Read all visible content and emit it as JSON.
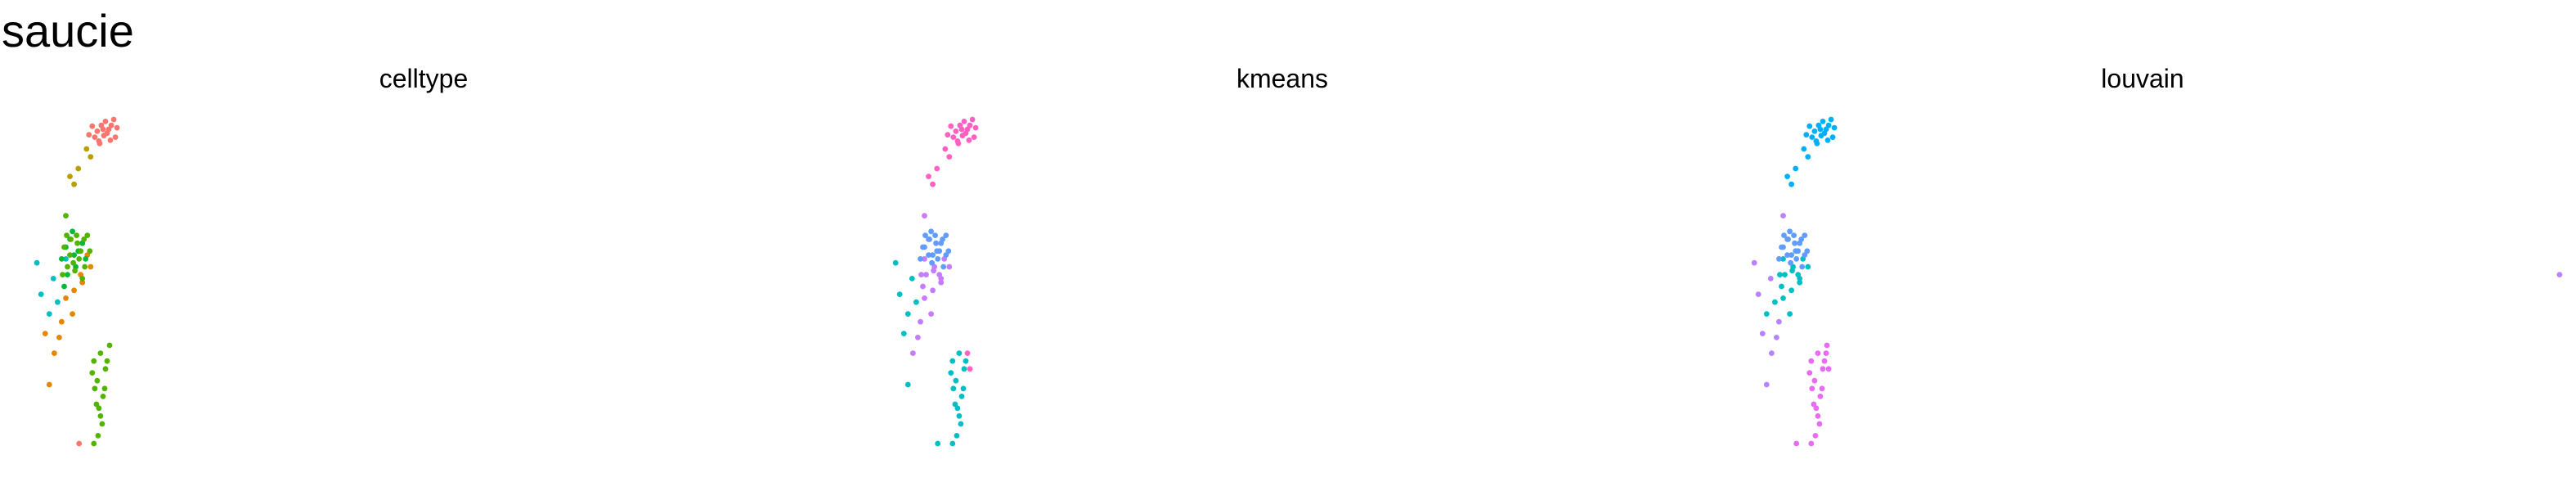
{
  "title": "saucie",
  "chart_data": [
    {
      "type": "scatter",
      "title": "celltype",
      "xlabel": "",
      "ylabel": "",
      "axes": "none",
      "grid": false,
      "legend": "none",
      "xlim": [
        0,
        100
      ],
      "ylim": [
        0,
        100
      ],
      "series": [
        {
          "name": "cluster-red",
          "color": "#F8766D",
          "points": [
            [
              8.5,
              88
            ],
            [
              9.5,
              90
            ],
            [
              10.5,
              91
            ],
            [
              9,
              87
            ],
            [
              10,
              89
            ],
            [
              11,
              88
            ],
            [
              9.8,
              92
            ],
            [
              8.8,
              89.5
            ],
            [
              10.4,
              87.2
            ],
            [
              9.3,
              91
            ],
            [
              11.2,
              90.4
            ],
            [
              7.8,
              88.6
            ],
            [
              10.8,
              92.5
            ],
            [
              9.1,
              86.4
            ],
            [
              8.2,
              90.8
            ],
            [
              10.2,
              90
            ],
            [
              9.6,
              88.4
            ],
            [
              6.6,
              10
            ]
          ]
        },
        {
          "name": "cluster-olive",
          "color": "#B79F00",
          "points": [
            [
              7.5,
              85
            ],
            [
              6.5,
              80
            ],
            [
              6,
              76
            ],
            [
              8,
              83
            ],
            [
              5.5,
              78
            ]
          ]
        },
        {
          "name": "cluster-teal",
          "color": "#00BFC4",
          "points": [
            [
              1.5,
              56
            ],
            [
              2,
              48
            ],
            [
              3.5,
              52
            ],
            [
              4,
              46
            ],
            [
              5,
              57
            ],
            [
              3,
              43
            ]
          ]
        },
        {
          "name": "cluster-orange",
          "color": "#E58700",
          "points": [
            [
              2.5,
              38
            ],
            [
              3,
              25
            ],
            [
              4.5,
              41
            ],
            [
              5,
              47
            ],
            [
              6,
              49
            ],
            [
              7,
              51
            ],
            [
              8,
              55
            ],
            [
              5.8,
              43
            ],
            [
              4.2,
              37
            ],
            [
              6.8,
              53
            ],
            [
              3.6,
              33
            ],
            [
              7.6,
              58
            ]
          ]
        },
        {
          "name": "cluster-green",
          "color": "#00BA38",
          "points": [
            [
              4.5,
              57
            ],
            [
              5,
              60
            ],
            [
              5.5,
              62
            ],
            [
              6,
              58
            ],
            [
              6.5,
              59
            ],
            [
              7,
              61
            ],
            [
              5.2,
              53
            ],
            [
              6.2,
              55
            ],
            [
              4.8,
              50
            ],
            [
              7.4,
              57
            ],
            [
              5.8,
              64
            ]
          ]
        },
        {
          "name": "cluster-darkgreen",
          "color": "#53B400",
          "points": [
            [
              5,
              68
            ],
            [
              4.8,
              60
            ],
            [
              5.6,
              62
            ],
            [
              6.4,
              61
            ],
            [
              6.6,
              57
            ],
            [
              7.2,
              62
            ],
            [
              5.2,
              55
            ],
            [
              5.9,
              56
            ],
            [
              7.3,
              55
            ],
            [
              7.9,
              59
            ],
            [
              6.1,
              54
            ],
            [
              7,
              52
            ],
            [
              5.5,
              58
            ],
            [
              6.8,
              59
            ],
            [
              7.6,
              63
            ],
            [
              4.6,
              53
            ],
            [
              6.3,
              63
            ],
            [
              5.1,
              63
            ],
            [
              8.4,
              31
            ],
            [
              8.2,
              28
            ],
            [
              9.2,
              33
            ],
            [
              10,
              31
            ],
            [
              8.5,
              24
            ],
            [
              9,
              19
            ],
            [
              9.5,
              22
            ],
            [
              8.8,
              26
            ],
            [
              9.8,
              29
            ],
            [
              9.4,
              15
            ],
            [
              8.9,
              12
            ],
            [
              8.4,
              10
            ],
            [
              10.3,
              35
            ],
            [
              9.7,
              24
            ],
            [
              9.2,
              17
            ],
            [
              8.7,
              20
            ]
          ]
        }
      ]
    },
    {
      "type": "scatter",
      "title": "kmeans",
      "xlabel": "",
      "ylabel": "",
      "axes": "none",
      "grid": false,
      "legend": "none",
      "xlim": [
        0,
        100
      ],
      "ylim": [
        0,
        100
      ],
      "series": [
        {
          "name": "cluster-pink",
          "color": "#FF61C3",
          "points": [
            [
              8.5,
              88
            ],
            [
              9.5,
              90
            ],
            [
              10.5,
              91
            ],
            [
              9,
              87
            ],
            [
              10,
              89
            ],
            [
              11,
              88
            ],
            [
              9.8,
              92
            ],
            [
              8.8,
              89.5
            ],
            [
              10.4,
              87.2
            ],
            [
              9.3,
              91
            ],
            [
              11.2,
              90.4
            ],
            [
              7.8,
              88.6
            ],
            [
              10.8,
              92.5
            ],
            [
              9.1,
              86.4
            ],
            [
              8.2,
              90.8
            ],
            [
              10.2,
              90
            ],
            [
              9.6,
              88.4
            ],
            [
              7.5,
              85
            ],
            [
              6.5,
              80
            ],
            [
              6,
              76
            ],
            [
              8,
              83
            ],
            [
              5.5,
              78
            ],
            [
              10.2,
              33
            ],
            [
              10.5,
              29
            ]
          ]
        },
        {
          "name": "cluster-cyan",
          "color": "#00BFC4",
          "points": [
            [
              1.5,
              56
            ],
            [
              2,
              48
            ],
            [
              3.5,
              52
            ],
            [
              4,
              46
            ],
            [
              3,
              43
            ],
            [
              2.5,
              38
            ],
            [
              8.4,
              31
            ],
            [
              8.2,
              28
            ],
            [
              9.2,
              33
            ],
            [
              10,
              31
            ],
            [
              8.5,
              24
            ],
            [
              9,
              19
            ],
            [
              9.5,
              22
            ],
            [
              8.8,
              26
            ],
            [
              9.8,
              29
            ],
            [
              9.4,
              15
            ],
            [
              8.9,
              12
            ],
            [
              8.4,
              10
            ],
            [
              9.7,
              24
            ],
            [
              9.2,
              17
            ],
            [
              8.7,
              20
            ],
            [
              6.6,
              10
            ],
            [
              3,
              25
            ]
          ]
        },
        {
          "name": "cluster-violet",
          "color": "#C77CFF",
          "points": [
            [
              4.5,
              41
            ],
            [
              5,
              47
            ],
            [
              6,
              49
            ],
            [
              7,
              51
            ],
            [
              5.8,
              43
            ],
            [
              4.2,
              37
            ],
            [
              3.6,
              33
            ],
            [
              5,
              57
            ],
            [
              8,
              55
            ],
            [
              6.8,
              53
            ],
            [
              4.8,
              50
            ],
            [
              5.2,
              53
            ],
            [
              6.2,
              55
            ],
            [
              7.4,
              57
            ],
            [
              6.1,
              54
            ],
            [
              7,
              52
            ],
            [
              4.6,
              53
            ],
            [
              5,
              68
            ]
          ]
        },
        {
          "name": "cluster-periwinkle",
          "color": "#619CFF",
          "points": [
            [
              4.5,
              57
            ],
            [
              5,
              60
            ],
            [
              5.5,
              62
            ],
            [
              6,
              58
            ],
            [
              6.5,
              59
            ],
            [
              7,
              61
            ],
            [
              5.8,
              64
            ],
            [
              4.8,
              60
            ],
            [
              5.6,
              62
            ],
            [
              6.4,
              61
            ],
            [
              6.6,
              57
            ],
            [
              7.2,
              62
            ],
            [
              5.9,
              56
            ],
            [
              7.3,
              55
            ],
            [
              7.9,
              59
            ],
            [
              5.5,
              58
            ],
            [
              6.8,
              59
            ],
            [
              7.6,
              63
            ],
            [
              6.3,
              63
            ],
            [
              5.1,
              63
            ],
            [
              7.6,
              58
            ]
          ]
        }
      ]
    },
    {
      "type": "scatter",
      "title": "louvain",
      "xlabel": "",
      "ylabel": "",
      "axes": "none",
      "grid": false,
      "legend": "none",
      "xlim": [
        0,
        100
      ],
      "ylim": [
        0,
        100
      ],
      "series": [
        {
          "name": "cluster-blue",
          "color": "#00B0F6",
          "points": [
            [
              8.5,
              88
            ],
            [
              9.5,
              90
            ],
            [
              10.5,
              91
            ],
            [
              9,
              87
            ],
            [
              10,
              89
            ],
            [
              11,
              88
            ],
            [
              9.8,
              92
            ],
            [
              8.8,
              89.5
            ],
            [
              10.4,
              87.2
            ],
            [
              9.3,
              91
            ],
            [
              11.2,
              90.4
            ],
            [
              7.8,
              88.6
            ],
            [
              10.8,
              92.5
            ],
            [
              9.1,
              86.4
            ],
            [
              8.2,
              90.8
            ],
            [
              10.2,
              90
            ],
            [
              9.6,
              88.4
            ],
            [
              7.5,
              85
            ],
            [
              6.5,
              80
            ],
            [
              6,
              76
            ],
            [
              8,
              83
            ],
            [
              5.5,
              78
            ]
          ]
        },
        {
          "name": "cluster-violet",
          "color": "#B983FF",
          "points": [
            [
              1.5,
              56
            ],
            [
              2,
              48
            ],
            [
              3.5,
              52
            ],
            [
              2.5,
              38
            ],
            [
              3,
              25
            ],
            [
              3.6,
              33
            ],
            [
              4.2,
              37
            ],
            [
              4.5,
              41
            ],
            [
              5,
              68
            ],
            [
              99,
              53
            ]
          ]
        },
        {
          "name": "cluster-teal",
          "color": "#00BFC4",
          "points": [
            [
              4,
              46
            ],
            [
              3,
              43
            ],
            [
              5,
              47
            ],
            [
              6,
              49
            ],
            [
              7,
              51
            ],
            [
              5.8,
              43
            ],
            [
              4.8,
              50
            ],
            [
              5.2,
              53
            ],
            [
              6.2,
              55
            ],
            [
              6.1,
              54
            ],
            [
              7,
              52
            ],
            [
              4.6,
              53
            ],
            [
              5,
              57
            ],
            [
              8,
              55
            ],
            [
              6.8,
              53
            ],
            [
              7.4,
              57
            ]
          ]
        },
        {
          "name": "cluster-steelblue",
          "color": "#619CFF",
          "points": [
            [
              4.5,
              57
            ],
            [
              5,
              60
            ],
            [
              5.5,
              62
            ],
            [
              6,
              58
            ],
            [
              6.5,
              59
            ],
            [
              7,
              61
            ],
            [
              5.8,
              64
            ],
            [
              4.8,
              60
            ],
            [
              5.6,
              62
            ],
            [
              6.4,
              61
            ],
            [
              6.6,
              57
            ],
            [
              7.2,
              62
            ],
            [
              5.9,
              56
            ],
            [
              7.3,
              55
            ],
            [
              7.9,
              59
            ],
            [
              5.5,
              58
            ],
            [
              6.8,
              59
            ],
            [
              7.6,
              63
            ],
            [
              6.3,
              63
            ],
            [
              5.1,
              63
            ],
            [
              7.6,
              58
            ]
          ]
        },
        {
          "name": "cluster-magenta",
          "color": "#E76BF3",
          "points": [
            [
              8.4,
              31
            ],
            [
              8.2,
              28
            ],
            [
              9.2,
              33
            ],
            [
              10,
              31
            ],
            [
              8.5,
              24
            ],
            [
              9,
              19
            ],
            [
              9.5,
              22
            ],
            [
              8.8,
              26
            ],
            [
              9.8,
              29
            ],
            [
              9.4,
              15
            ],
            [
              8.9,
              12
            ],
            [
              8.4,
              10
            ],
            [
              10.3,
              35
            ],
            [
              9.7,
              24
            ],
            [
              9.2,
              17
            ],
            [
              8.7,
              20
            ],
            [
              10.2,
              33
            ],
            [
              10.5,
              29
            ],
            [
              6.6,
              10
            ]
          ]
        }
      ]
    }
  ]
}
